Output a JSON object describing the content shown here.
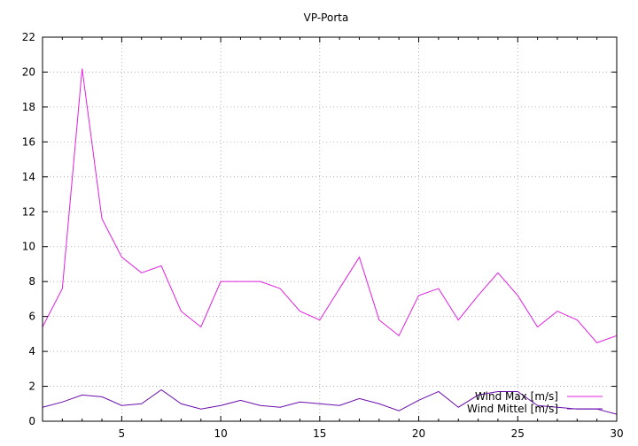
{
  "chart_data": {
    "type": "line",
    "title": "VP-Porta",
    "xlabel": "",
    "ylabel": "",
    "xlim": [
      1,
      30
    ],
    "ylim": [
      0,
      22
    ],
    "xticks": [
      5,
      10,
      15,
      20,
      25,
      30
    ],
    "yticks": [
      0,
      2,
      4,
      6,
      8,
      10,
      12,
      14,
      16,
      18,
      20,
      22
    ],
    "grid": true,
    "legend_position": "bottom-right",
    "x": [
      1,
      2,
      3,
      4,
      5,
      6,
      7,
      8,
      9,
      10,
      11,
      12,
      13,
      14,
      15,
      16,
      17,
      18,
      19,
      20,
      21,
      22,
      23,
      24,
      25,
      26,
      27,
      28,
      29,
      30
    ],
    "series": [
      {
        "name": "Wind Max [m/s]",
        "color": "#e020e0",
        "values": [
          5.4,
          7.6,
          20.2,
          11.6,
          9.4,
          8.5,
          8.9,
          6.3,
          5.4,
          8.0,
          8.0,
          8.0,
          7.6,
          6.3,
          5.8,
          7.6,
          9.4,
          5.8,
          4.9,
          7.2,
          7.6,
          5.8,
          7.2,
          8.5,
          7.2,
          5.4,
          6.3,
          5.8,
          4.5,
          4.9
        ]
      },
      {
        "name": "Wind Mittel [m/s]",
        "color": "#6a0dad",
        "values": [
          0.8,
          1.1,
          1.5,
          1.4,
          0.9,
          1.0,
          1.8,
          1.0,
          0.7,
          0.9,
          1.2,
          0.9,
          0.8,
          1.1,
          1.0,
          0.9,
          1.3,
          1.0,
          0.6,
          1.2,
          1.7,
          0.8,
          1.5,
          1.7,
          1.7,
          0.9,
          0.8,
          0.7,
          0.7,
          0.4
        ]
      }
    ]
  }
}
